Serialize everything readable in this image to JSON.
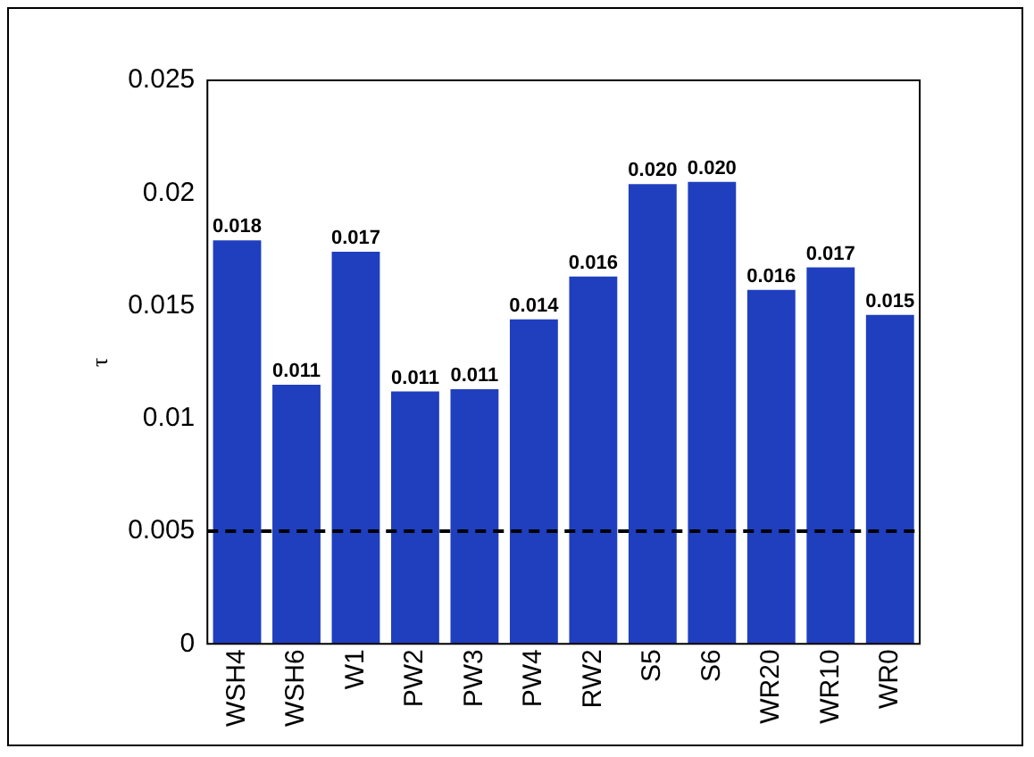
{
  "chart_data": {
    "type": "bar",
    "ylabel": "τ",
    "categories": [
      "WSH4",
      "WSH6",
      "W1",
      "PW2",
      "PW3",
      "PW4",
      "RW2",
      "S5",
      "S6",
      "WR20",
      "WR10",
      "WR0"
    ],
    "values": [
      0.0179,
      0.0115,
      0.0174,
      0.0112,
      0.0113,
      0.0144,
      0.0163,
      0.0204,
      0.0205,
      0.0157,
      0.0167,
      0.0146
    ],
    "value_labels": [
      "0.018",
      "0.011",
      "0.017",
      "0.011",
      "0.011",
      "0.014",
      "0.016",
      "0.020",
      "0.020",
      "0.016",
      "0.017",
      "0.015"
    ],
    "color": "#1f3fbf",
    "ylim": [
      0,
      0.025
    ],
    "yticks": [
      0,
      0.005,
      0.01,
      0.015,
      0.02,
      0.025
    ],
    "ref_lines": [
      {
        "axis": "y",
        "value": 0.005,
        "color": "#000000",
        "line_style": "dashed"
      }
    ],
    "grid": false,
    "legend": false
  }
}
